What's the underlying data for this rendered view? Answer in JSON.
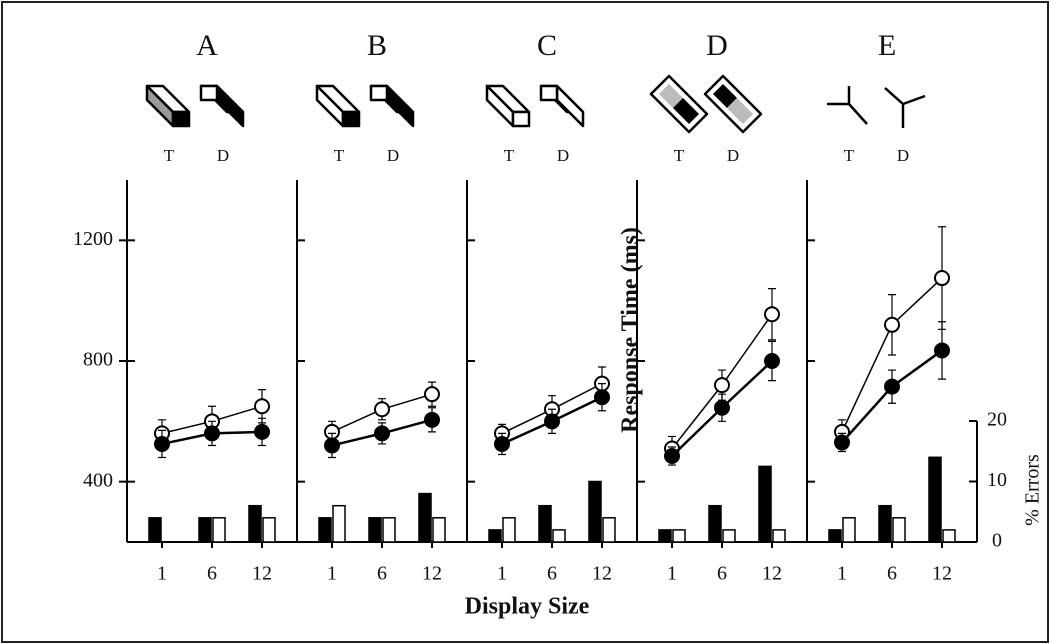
{
  "chart_data": [
    {
      "type": "line",
      "title": "A",
      "icon_labels": [
        "T",
        "D"
      ],
      "categories": [
        "1",
        "6",
        "12"
      ],
      "ylabel": "Response Time (ms)",
      "ylim": [
        200,
        1400
      ],
      "yticks": [
        400,
        800,
        1200
      ],
      "y2lim": [
        0,
        20
      ],
      "series": [
        {
          "marker": "open",
          "color": "#000000",
          "values": [
            560,
            600,
            650
          ],
          "errors": [
            45,
            50,
            55
          ]
        },
        {
          "marker": "filled",
          "color": "#000000",
          "values": [
            525,
            560,
            565
          ],
          "errors": [
            45,
            40,
            45
          ]
        },
        {
          "type": "bar",
          "axis": "y2",
          "color": "#000000",
          "values": [
            4,
            4,
            6
          ]
        },
        {
          "type": "bar",
          "axis": "y2",
          "color": "#ffffff",
          "values": [
            0,
            4,
            4
          ]
        }
      ]
    },
    {
      "type": "line",
      "title": "B",
      "icon_labels": [
        "T",
        "D"
      ],
      "categories": [
        "1",
        "6",
        "12"
      ],
      "ylim": [
        200,
        1400
      ],
      "y2lim": [
        0,
        20
      ],
      "series": [
        {
          "marker": "open",
          "color": "#000000",
          "values": [
            565,
            640,
            690
          ],
          "errors": [
            35,
            35,
            40
          ]
        },
        {
          "marker": "filled",
          "color": "#000000",
          "values": [
            520,
            560,
            605
          ],
          "errors": [
            40,
            35,
            40
          ]
        },
        {
          "type": "bar",
          "axis": "y2",
          "color": "#000000",
          "values": [
            4,
            4,
            8
          ]
        },
        {
          "type": "bar",
          "axis": "y2",
          "color": "#ffffff",
          "values": [
            6,
            4,
            4
          ]
        }
      ]
    },
    {
      "type": "line",
      "title": "C",
      "icon_labels": [
        "T",
        "D"
      ],
      "categories": [
        "1",
        "6",
        "12"
      ],
      "xlabel": "Display Size",
      "ylim": [
        200,
        1400
      ],
      "y2lim": [
        0,
        20
      ],
      "series": [
        {
          "marker": "open",
          "color": "#000000",
          "values": [
            560,
            640,
            725
          ],
          "errors": [
            30,
            45,
            55
          ]
        },
        {
          "marker": "filled",
          "color": "#000000",
          "values": [
            525,
            600,
            680
          ],
          "errors": [
            35,
            40,
            45
          ]
        },
        {
          "type": "bar",
          "axis": "y2",
          "color": "#000000",
          "values": [
            2,
            6,
            10
          ]
        },
        {
          "type": "bar",
          "axis": "y2",
          "color": "#ffffff",
          "values": [
            4,
            2,
            4
          ]
        }
      ]
    },
    {
      "type": "line",
      "title": "D",
      "icon_labels": [
        "T",
        "D"
      ],
      "categories": [
        "1",
        "6",
        "12"
      ],
      "ylim": [
        200,
        1400
      ],
      "y2lim": [
        0,
        20
      ],
      "series": [
        {
          "marker": "open",
          "color": "#000000",
          "values": [
            510,
            720,
            955
          ],
          "errors": [
            40,
            50,
            85
          ]
        },
        {
          "marker": "filled",
          "color": "#000000",
          "values": [
            485,
            645,
            800
          ],
          "errors": [
            30,
            45,
            65
          ]
        },
        {
          "type": "bar",
          "axis": "y2",
          "color": "#000000",
          "values": [
            2,
            6,
            12.5
          ]
        },
        {
          "type": "bar",
          "axis": "y2",
          "color": "#ffffff",
          "values": [
            2,
            2,
            2
          ]
        }
      ]
    },
    {
      "type": "line",
      "title": "E",
      "icon_labels": [
        "T",
        "D"
      ],
      "categories": [
        "1",
        "6",
        "12"
      ],
      "y2label": "% Errors",
      "ylim": [
        200,
        1400
      ],
      "y2lim": [
        0,
        20
      ],
      "y2ticks": [
        0,
        10,
        20
      ],
      "series": [
        {
          "marker": "open",
          "color": "#000000",
          "values": [
            565,
            920,
            1075
          ],
          "errors": [
            40,
            100,
            170
          ]
        },
        {
          "marker": "filled",
          "color": "#000000",
          "values": [
            530,
            715,
            835
          ],
          "errors": [
            30,
            55,
            95
          ]
        },
        {
          "type": "bar",
          "axis": "y2",
          "color": "#000000",
          "values": [
            2,
            6,
            14
          ]
        },
        {
          "type": "bar",
          "axis": "y2",
          "color": "#ffffff",
          "values": [
            4,
            4,
            2
          ]
        }
      ]
    }
  ]
}
